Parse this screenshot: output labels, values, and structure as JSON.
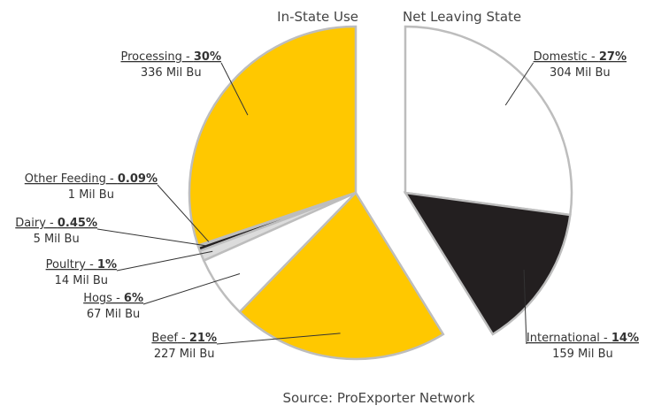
{
  "chart_data": {
    "type": "pie",
    "source": "Source: ProExporter Network",
    "label_separator": " - ",
    "series": [
      {
        "name": "In-State Use",
        "categories": [
          "Processing",
          "Other Feeding",
          "Dairy",
          "Poultry",
          "Hogs",
          "Beef"
        ],
        "values": [
          30,
          0.09,
          0.45,
          1,
          6,
          21
        ],
        "value_labels": [
          "30%",
          "0.09%",
          "0.45%",
          "1%",
          "6%",
          "21%"
        ],
        "amounts": [
          "336 Mil Bu",
          "1 Mil Bu",
          "5 Mil Bu",
          "14 Mil Bu",
          "67 Mil Bu",
          "227 Mil Bu"
        ],
        "colors": [
          "#ffc800",
          "#c8c8c8",
          "#231f20",
          "#dcdcdc",
          "#ffffff",
          "#ffc800"
        ]
      },
      {
        "name": "Net Leaving State",
        "categories": [
          "Domestic",
          "International"
        ],
        "values": [
          27,
          14
        ],
        "value_labels": [
          "27%",
          "14%"
        ],
        "amounts": [
          "304 Mil Bu",
          "159 Mil Bu"
        ],
        "colors": [
          "#ffffff",
          "#231f20"
        ]
      }
    ]
  }
}
